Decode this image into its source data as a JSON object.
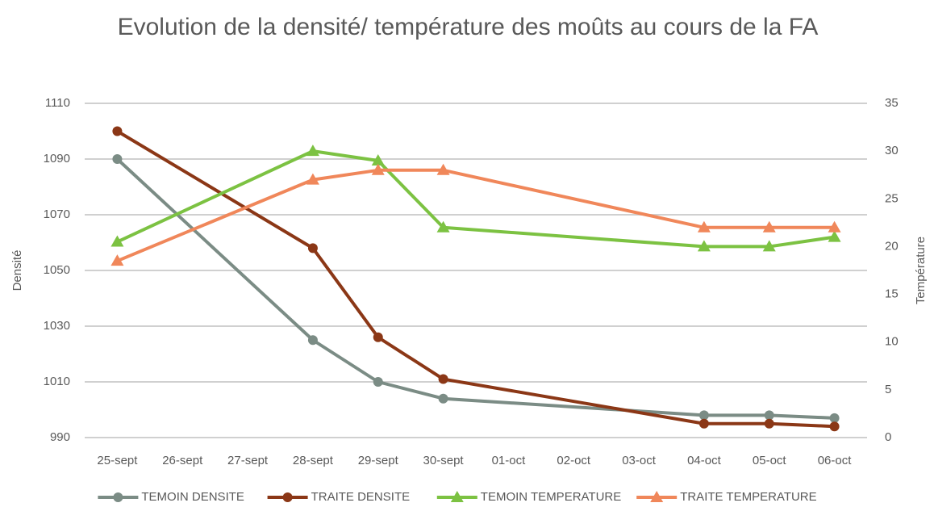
{
  "chart_data": {
    "type": "line",
    "title": "Evolution de la densité/ température des moûts au cours de la FA",
    "y_label": "Densité",
    "y2_label": "Température",
    "categories": [
      "25-sept",
      "26-sept",
      "27-sept",
      "28-sept",
      "29-sept",
      "30-sept",
      "01-oct",
      "02-oct",
      "03-oct",
      "04-oct",
      "05-oct",
      "06-oct"
    ],
    "span_gaps": true,
    "grid": true,
    "legend": "bottom",
    "ylim": [
      990,
      1110
    ],
    "yticks": [
      990,
      1010,
      1030,
      1050,
      1070,
      1090,
      1110
    ],
    "y2lim": [
      0,
      35
    ],
    "y2ticks": [
      0,
      5,
      10,
      15,
      20,
      25,
      30,
      35
    ],
    "series": [
      {
        "name": "TEMOIN DENSITE",
        "color": "#7b8c85",
        "marker": "circle",
        "values": [
          1090,
          null,
          null,
          1025,
          1010,
          1004,
          null,
          null,
          null,
          998,
          998,
          997
        ]
      },
      {
        "name": "TRAITE DENSITE",
        "color": "#8b3716",
        "marker": "circle",
        "values": [
          1100,
          null,
          null,
          1058,
          1026,
          1011,
          null,
          null,
          null,
          995,
          995,
          994
        ]
      },
      {
        "name": "TEMOIN TEMPERATURE",
        "color": "#7cc242",
        "marker": "triangle",
        "axis": "y2",
        "values": [
          20.5,
          null,
          null,
          30,
          29,
          22,
          null,
          null,
          null,
          20,
          20,
          21
        ]
      },
      {
        "name": "TRAITE TEMPERATURE",
        "color": "#f0875a",
        "marker": "triangle",
        "axis": "y2",
        "values": [
          18.5,
          null,
          null,
          27,
          28,
          28,
          null,
          null,
          null,
          22,
          22,
          22
        ]
      }
    ]
  }
}
